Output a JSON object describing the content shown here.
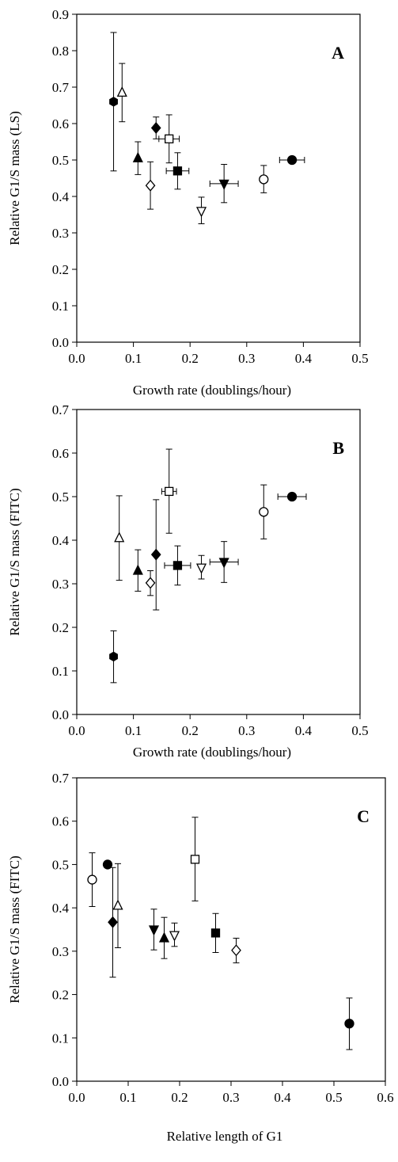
{
  "chart_data": [
    {
      "type": "scatter",
      "panel": "A",
      "xlabel": "Growth rate (doublings/hour)",
      "ylabel": "Relative G1/S mass (LS)",
      "xlim": [
        0,
        0.5
      ],
      "ylim": [
        0,
        0.9
      ],
      "xticks": [
        "0.0",
        "0.1",
        "0.2",
        "0.3",
        "0.4",
        "0.5"
      ],
      "yticks": [
        "0.0",
        "0.1",
        "0.2",
        "0.3",
        "0.4",
        "0.5",
        "0.6",
        "0.7",
        "0.8",
        "0.9"
      ],
      "grid": false,
      "points": [
        {
          "marker": "filled-hexagon",
          "x": 0.065,
          "y": 0.66,
          "y_err": [
            0.47,
            0.85
          ]
        },
        {
          "marker": "open-triangle-up",
          "x": 0.08,
          "y": 0.685,
          "y_err": [
            0.605,
            0.765
          ]
        },
        {
          "marker": "filled-triangle-up",
          "x": 0.108,
          "y": 0.505,
          "y_err": [
            0.46,
            0.55
          ]
        },
        {
          "marker": "open-diamond",
          "x": 0.13,
          "y": 0.43,
          "y_err": [
            0.365,
            0.495
          ]
        },
        {
          "marker": "filled-diamond",
          "x": 0.14,
          "y": 0.588,
          "y_err": [
            0.558,
            0.618
          ]
        },
        {
          "marker": "open-square",
          "x": 0.163,
          "y": 0.558,
          "y_err": [
            0.492,
            0.624
          ],
          "x_err": [
            0.145,
            0.181
          ]
        },
        {
          "marker": "filled-square",
          "x": 0.178,
          "y": 0.47,
          "y_err": [
            0.42,
            0.52
          ],
          "x_err": [
            0.158,
            0.198
          ]
        },
        {
          "marker": "open-triangle-down",
          "x": 0.22,
          "y": 0.36,
          "y_err": [
            0.325,
            0.398
          ]
        },
        {
          "marker": "filled-triangle-down",
          "x": 0.26,
          "y": 0.435,
          "y_err": [
            0.383,
            0.488
          ],
          "x_err": [
            0.235,
            0.285
          ]
        },
        {
          "marker": "open-circle",
          "x": 0.33,
          "y": 0.447,
          "y_err": [
            0.41,
            0.485
          ]
        },
        {
          "marker": "filled-circle",
          "x": 0.38,
          "y": 0.5,
          "x_err": [
            0.358,
            0.402
          ]
        }
      ],
      "annotations": [
        "A"
      ]
    },
    {
      "type": "scatter",
      "panel": "B",
      "xlabel": "Growth rate (doublings/hour)",
      "ylabel": "Relative G1/S mass (FITC)",
      "xlim": [
        0,
        0.5
      ],
      "ylim": [
        0,
        0.7
      ],
      "xticks": [
        "0.0",
        "0.1",
        "0.2",
        "0.3",
        "0.4",
        "0.5"
      ],
      "yticks": [
        "0.0",
        "0.1",
        "0.2",
        "0.3",
        "0.4",
        "0.5",
        "0.6",
        "0.7"
      ],
      "grid": false,
      "points": [
        {
          "marker": "filled-hexagon",
          "x": 0.065,
          "y": 0.133,
          "y_err": [
            0.073,
            0.192
          ]
        },
        {
          "marker": "open-triangle-up",
          "x": 0.075,
          "y": 0.405,
          "y_err": [
            0.308,
            0.502
          ]
        },
        {
          "marker": "filled-triangle-up",
          "x": 0.108,
          "y": 0.33,
          "y_err": [
            0.283,
            0.378
          ]
        },
        {
          "marker": "open-diamond",
          "x": 0.13,
          "y": 0.302,
          "y_err": [
            0.273,
            0.33
          ]
        },
        {
          "marker": "filled-diamond",
          "x": 0.14,
          "y": 0.367,
          "y_err": [
            0.24,
            0.493
          ]
        },
        {
          "marker": "open-square",
          "x": 0.163,
          "y": 0.512,
          "y_err": [
            0.416,
            0.609
          ],
          "x_err": [
            0.15,
            0.176
          ]
        },
        {
          "marker": "filled-square",
          "x": 0.178,
          "y": 0.342,
          "y_err": [
            0.297,
            0.387
          ],
          "x_err": [
            0.155,
            0.201
          ]
        },
        {
          "marker": "open-triangle-down",
          "x": 0.22,
          "y": 0.337,
          "y_err": [
            0.311,
            0.365
          ]
        },
        {
          "marker": "filled-triangle-down",
          "x": 0.26,
          "y": 0.35,
          "y_err": [
            0.303,
            0.397
          ],
          "x_err": [
            0.235,
            0.285
          ]
        },
        {
          "marker": "open-circle",
          "x": 0.33,
          "y": 0.465,
          "y_err": [
            0.403,
            0.527
          ]
        },
        {
          "marker": "filled-circle",
          "x": 0.38,
          "y": 0.5,
          "x_err": [
            0.355,
            0.405
          ]
        }
      ],
      "annotations": [
        "B"
      ]
    },
    {
      "type": "scatter",
      "panel": "C",
      "xlabel": "Relative length of G1",
      "ylabel": "Relative G1/S mass (FITC)",
      "xlim": [
        0,
        0.6
      ],
      "ylim": [
        0,
        0.7
      ],
      "xticks": [
        "0.0",
        "0.1",
        "0.2",
        "0.3",
        "0.4",
        "0.5",
        "0.6"
      ],
      "yticks": [
        "0.0",
        "0.1",
        "0.2",
        "0.3",
        "0.4",
        "0.5",
        "0.6",
        "0.7"
      ],
      "grid": false,
      "points": [
        {
          "marker": "open-circle",
          "x": 0.03,
          "y": 0.465,
          "y_err": [
            0.403,
            0.527
          ]
        },
        {
          "marker": "filled-circle",
          "x": 0.06,
          "y": 0.5
        },
        {
          "marker": "filled-diamond",
          "x": 0.07,
          "y": 0.367,
          "y_err": [
            0.24,
            0.493
          ]
        },
        {
          "marker": "open-triangle-up",
          "x": 0.08,
          "y": 0.405,
          "y_err": [
            0.308,
            0.502
          ]
        },
        {
          "marker": "filled-triangle-down",
          "x": 0.15,
          "y": 0.35,
          "y_err": [
            0.303,
            0.397
          ]
        },
        {
          "marker": "filled-triangle-up",
          "x": 0.17,
          "y": 0.33,
          "y_err": [
            0.283,
            0.378
          ]
        },
        {
          "marker": "open-triangle-down",
          "x": 0.19,
          "y": 0.337,
          "y_err": [
            0.311,
            0.365
          ]
        },
        {
          "marker": "open-square",
          "x": 0.23,
          "y": 0.512,
          "y_err": [
            0.416,
            0.609
          ]
        },
        {
          "marker": "filled-square",
          "x": 0.27,
          "y": 0.342,
          "y_err": [
            0.297,
            0.387
          ]
        },
        {
          "marker": "open-diamond",
          "x": 0.31,
          "y": 0.302,
          "y_err": [
            0.273,
            0.33
          ]
        },
        {
          "marker": "filled-circle",
          "x": 0.53,
          "y": 0.133,
          "y_err": [
            0.073,
            0.192
          ]
        }
      ],
      "annotations": [
        "C"
      ]
    }
  ]
}
